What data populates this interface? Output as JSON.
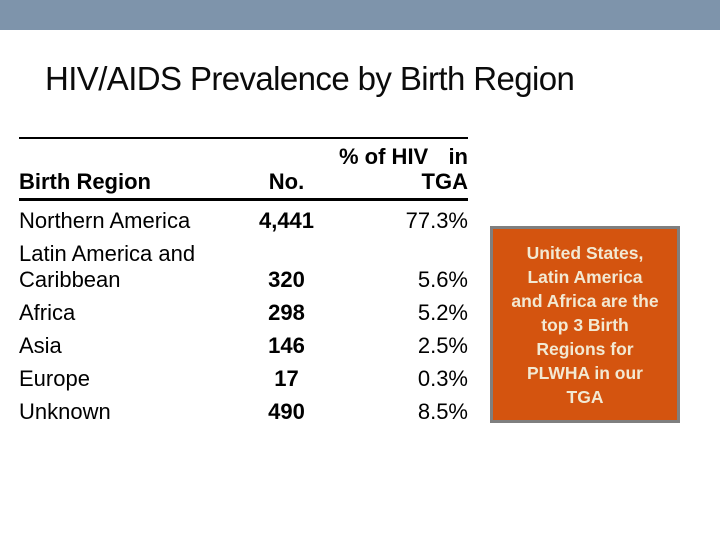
{
  "title": "HIV/AIDS Prevalence by Birth Region",
  "colors": {
    "top_band": "#7E94AB",
    "table_rule": "#000000",
    "callout_bg": "#D4540F",
    "callout_border": "#7F7F7F",
    "callout_text": "#F2E9D3"
  },
  "table": {
    "headers": {
      "region": "Birth Region",
      "no": "No.",
      "pct_part1": "% of HIV",
      "pct_part2": "in",
      "pct_line2": "TGA"
    },
    "rows": [
      {
        "region": "Northern America",
        "no": "4,441",
        "pct": "77.3%"
      },
      {
        "region_line1": "Latin America and",
        "region_line2": "Caribbean",
        "no": "320",
        "pct": "5.6%"
      },
      {
        "region": "Africa",
        "no": "298",
        "pct": "5.2%"
      },
      {
        "region": "Asia",
        "no": "146",
        "pct": "2.5%"
      },
      {
        "region": "Europe",
        "no": "17",
        "pct": "0.3%"
      },
      {
        "region": "Unknown",
        "no": "490",
        "pct": "8.5%"
      }
    ]
  },
  "callout": {
    "lines": [
      "United States,",
      "Latin America",
      "and Africa are the",
      "top 3 Birth",
      "Regions for",
      "PLWHA in our",
      "TGA"
    ]
  }
}
